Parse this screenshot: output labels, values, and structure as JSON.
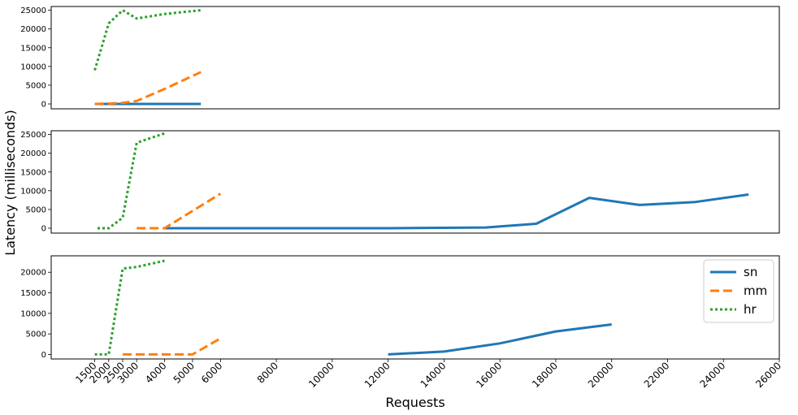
{
  "chart_data": {
    "type": "line",
    "xlabel": "Requests",
    "ylabel": "Latency (milliseconds)",
    "shared_xaxis": true,
    "xlim": [
      0,
      26000
    ],
    "xticks": [
      1500,
      2000,
      2500,
      3000,
      4000,
      5000,
      6000,
      8000,
      10000,
      12000,
      14000,
      16000,
      18000,
      20000,
      22000,
      24000,
      26000
    ],
    "xtick_labels": [
      "1500",
      "2000",
      "2500",
      "3000",
      "4000",
      "5000",
      "6000",
      "8000",
      "10000",
      "12000",
      "14000",
      "16000",
      "18000",
      "20000",
      "22000",
      "24000",
      "26000"
    ],
    "legend": {
      "placement": "top-right",
      "panel": 3,
      "entries": [
        "sn",
        "mm",
        "hr"
      ]
    },
    "series_styles": {
      "sn": {
        "color": "#1f77b4",
        "dash": "solid"
      },
      "mm": {
        "color": "#ff7f0e",
        "dash": "dashed"
      },
      "hr": {
        "color": "#2ca02c",
        "dash": "dotted"
      }
    },
    "panels": [
      {
        "ylim": [
          -1300,
          26000
        ],
        "yticks": [
          0,
          5000,
          10000,
          15000,
          20000,
          25000
        ],
        "ytick_labels": [
          "0",
          "5000",
          "10000",
          "15000",
          "20000",
          "25000"
        ],
        "show_xticks": false,
        "series": [
          {
            "name": "sn",
            "x": [
              1500,
              2500,
              3000,
              4000,
              5300
            ],
            "y": [
              0,
              0,
              0,
              0,
              0
            ]
          },
          {
            "name": "mm",
            "x": [
              1500,
              2000,
              2500,
              3000,
              4000,
              5300
            ],
            "y": [
              0,
              100,
              300,
              800,
              4000,
              8500
            ]
          },
          {
            "name": "hr",
            "x": [
              1500,
              2000,
              2500,
              3000,
              4000,
              5300
            ],
            "y": [
              9000,
              21500,
              25000,
              22800,
              24000,
              25000
            ]
          }
        ]
      },
      {
        "ylim": [
          -1300,
          26000
        ],
        "yticks": [
          0,
          5000,
          10000,
          15000,
          20000,
          25000
        ],
        "ytick_labels": [
          "0",
          "5000",
          "10000",
          "15000",
          "20000",
          "25000"
        ],
        "show_xticks": false,
        "series": [
          {
            "name": "sn",
            "x": [
              4000,
              8000,
              12000,
              15500,
              17300,
              19200,
              21000,
              23000,
              24900
            ],
            "y": [
              0,
              0,
              0,
              200,
              1200,
              8100,
              6200,
              7000,
              9000
            ]
          },
          {
            "name": "mm",
            "x": [
              3000,
              4000,
              6000
            ],
            "y": [
              0,
              0,
              9200
            ]
          },
          {
            "name": "hr",
            "x": [
              1600,
              2000,
              2500,
              3000,
              4000
            ],
            "y": [
              0,
              0,
              2800,
              22800,
              25300
            ]
          }
        ]
      },
      {
        "ylim": [
          -1100,
          24000
        ],
        "yticks": [
          0,
          5000,
          10000,
          15000,
          20000
        ],
        "ytick_labels": [
          "0",
          "5000",
          "10000",
          "15000",
          "20000"
        ],
        "show_xticks": true,
        "series": [
          {
            "name": "sn",
            "x": [
              12000,
              14000,
              16000,
              18000,
              20000
            ],
            "y": [
              0,
              700,
              2700,
              5600,
              7300
            ]
          },
          {
            "name": "mm",
            "x": [
              2500,
              3000,
              4000,
              5000,
              6000
            ],
            "y": [
              0,
              0,
              0,
              0,
              3900
            ]
          },
          {
            "name": "hr",
            "x": [
              1500,
              2000,
              2500,
              3000,
              4000
            ],
            "y": [
              0,
              0,
              20900,
              21300,
              22800
            ]
          }
        ]
      }
    ]
  }
}
